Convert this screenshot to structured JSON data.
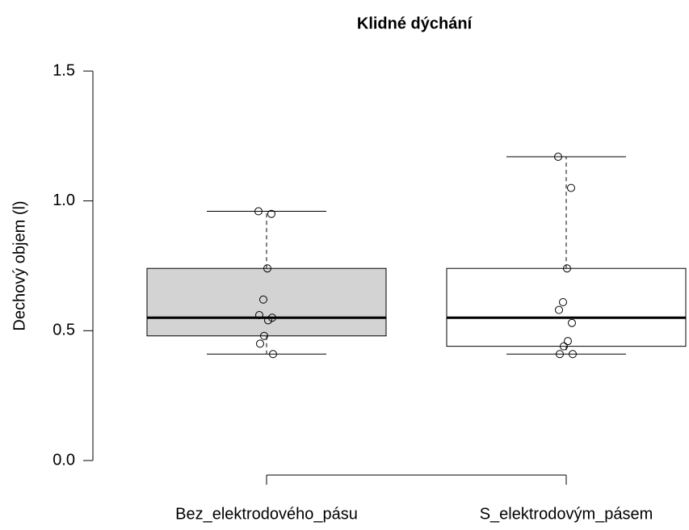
{
  "chart_data": {
    "type": "box",
    "title": "Klidné dýchání",
    "y_label": "Dechový objem (l)",
    "categories": [
      "Bez_elektrodového_pásu",
      "S_elektrodovým_pásem"
    ],
    "boxes": [
      {
        "whislo": 0.41,
        "q1": 0.48,
        "med": 0.55,
        "q3": 0.74,
        "whishi": 0.96,
        "fill": "#d3d3d3",
        "points": [
          0.96,
          0.95,
          0.74,
          0.62,
          0.56,
          0.55,
          0.54,
          0.48,
          0.45,
          0.41
        ]
      },
      {
        "whislo": 0.41,
        "q1": 0.44,
        "med": 0.55,
        "q3": 0.74,
        "whishi": 1.17,
        "fill": "#ffffff",
        "points": [
          1.17,
          1.05,
          0.74,
          0.61,
          0.58,
          0.53,
          0.46,
          0.44,
          0.41,
          0.41
        ]
      }
    ],
    "ylim": [
      0,
      1.5
    ],
    "yticks": [
      {
        "value": 0,
        "label": "0.0"
      },
      {
        "value": 0.5,
        "label": "0.5"
      },
      {
        "value": 1,
        "label": "1.0"
      },
      {
        "value": 1.5,
        "label": "1.5"
      }
    ]
  }
}
